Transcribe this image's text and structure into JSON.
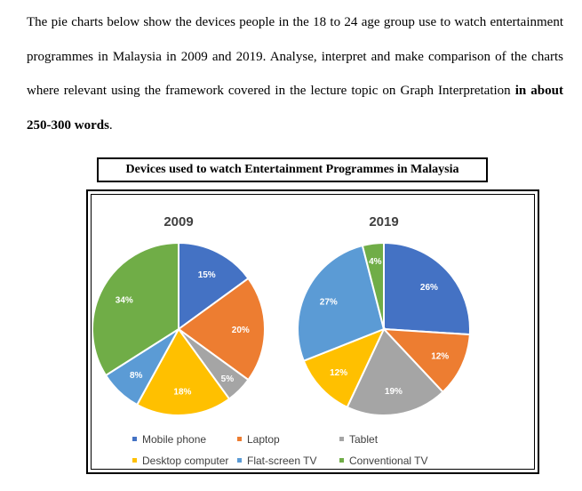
{
  "prompt": {
    "text_before": "The pie charts below show the devices people in the 18 to 24 age group use to watch entertainment programmes in Malaysia in 2009 and 2019. Analyse, interpret and make comparison of the charts where relevant using the framework covered in the lecture topic on Graph Interpretation ",
    "text_bold": "in about 250-300 words",
    "text_after": "."
  },
  "chart_data": {
    "type": "pie",
    "title": "Devices used to watch Entertainment Programmes in Malaysia",
    "legend_position": "bottom",
    "categories": [
      "Mobile phone",
      "Laptop",
      "Tablet",
      "Desktop computer",
      "Flat-screen TV",
      "Conventional TV"
    ],
    "colors": [
      "#4472C4",
      "#ED7D31",
      "#A5A5A5",
      "#FFC000",
      "#5B9BD5",
      "#70AD47"
    ],
    "pies": [
      {
        "name": "2009",
        "values": [
          15,
          20,
          5,
          18,
          8,
          34
        ],
        "labels": [
          "15%",
          "20%",
          "5%",
          "18%",
          "8%",
          "34%"
        ]
      },
      {
        "name": "2019",
        "values": [
          26,
          12,
          19,
          12,
          27,
          4
        ],
        "labels": [
          "26%",
          "12%",
          "19%",
          "12%",
          "27%",
          "4%"
        ]
      }
    ]
  }
}
